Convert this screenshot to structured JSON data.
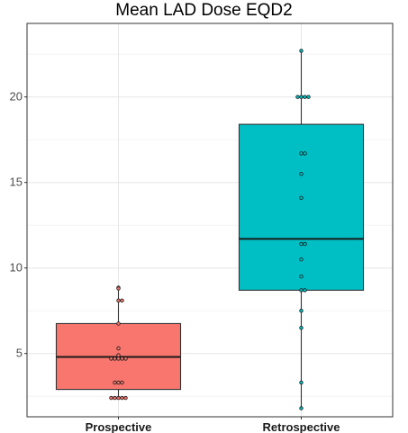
{
  "chart_data": {
    "type": "box",
    "title": "Mean LAD Dose EQD2",
    "xlabel": "",
    "ylabel": "",
    "categories": [
      "Prospective",
      "Retrospective"
    ],
    "ylim": [
      1.3,
      24.3
    ],
    "yticks": [
      5,
      10,
      15,
      20
    ],
    "grid": true,
    "legend": "none",
    "boxes": [
      {
        "name": "Prospective",
        "color": "#f8766d",
        "q1": 2.9,
        "median": 4.8,
        "q3": 6.75,
        "whisker_low": 2.4,
        "whisker_high": 8.85,
        "points": [
          8.85,
          8.8,
          8.1,
          8.1,
          6.75,
          5.3,
          4.9,
          4.7,
          4.7,
          4.7,
          4.7,
          4.7,
          3.3,
          3.3,
          3.3,
          2.4,
          2.4,
          2.4,
          2.4,
          2.4
        ]
      },
      {
        "name": "Retrospective",
        "color": "#00bfc4",
        "q1": 8.7,
        "median": 11.7,
        "q3": 18.4,
        "whisker_low": 1.8,
        "whisker_high": 22.7,
        "points": [
          22.7,
          20.0,
          20.0,
          20.0,
          20.0,
          16.7,
          16.7,
          15.5,
          14.1,
          11.4,
          11.4,
          10.5,
          9.5,
          8.7,
          8.7,
          7.5,
          6.5,
          3.3,
          1.8
        ]
      }
    ]
  }
}
